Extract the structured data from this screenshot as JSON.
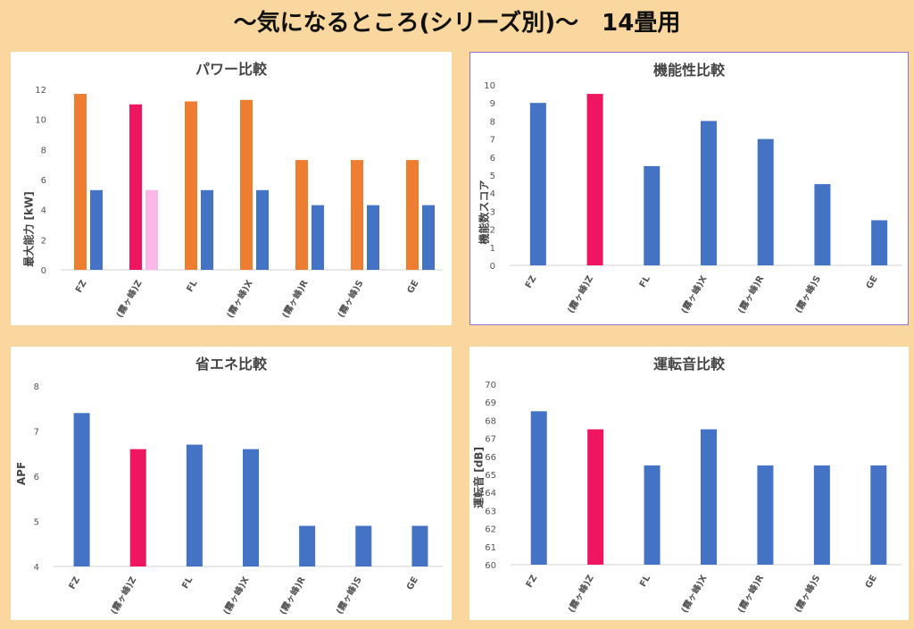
{
  "page_title": "〜気になるところ(シリーズ別)〜　14畳用",
  "colors": {
    "orange": "#ed7d31",
    "blue": "#4472c4",
    "pink": "#ef1561",
    "lightpink": "#fbb7e8",
    "background": "#f9d79e"
  },
  "chart_data": [
    {
      "type": "bar",
      "title": "パワー比較",
      "ylabel": "最大能力 [kW]",
      "xlabel": "",
      "categories": [
        "FZ",
        "(霧ヶ峰)Z",
        "FL",
        "(霧ヶ峰)X",
        "(霧ヶ峰)R",
        "(霧ヶ峰)S",
        "GE"
      ],
      "ylim": [
        0,
        12
      ],
      "yticks": [
        0,
        2,
        4,
        6,
        8,
        10,
        12
      ],
      "series": [
        {
          "values": [
            11.7,
            11.0,
            11.2,
            11.3,
            7.3,
            7.3,
            7.3
          ],
          "colors": [
            "#ed7d31",
            "#ef1561",
            "#ed7d31",
            "#ed7d31",
            "#ed7d31",
            "#ed7d31",
            "#ed7d31"
          ]
        },
        {
          "values": [
            5.3,
            5.3,
            5.3,
            5.3,
            4.3,
            4.3,
            4.3
          ],
          "colors": [
            "#4472c4",
            "#fbb7e8",
            "#4472c4",
            "#4472c4",
            "#4472c4",
            "#4472c4",
            "#4472c4"
          ]
        }
      ]
    },
    {
      "type": "bar",
      "title": "機能性比較",
      "ylabel": "機能数スコア",
      "xlabel": "",
      "categories": [
        "FZ",
        "(霧ヶ峰)Z",
        "FL",
        "(霧ヶ峰)X",
        "(霧ヶ峰)R",
        "(霧ヶ峰)S",
        "GE"
      ],
      "ylim": [
        0,
        10
      ],
      "yticks": [
        0,
        1,
        2,
        3,
        4,
        5,
        6,
        7,
        8,
        9,
        10
      ],
      "series": [
        {
          "values": [
            9,
            9.5,
            5.5,
            8,
            7,
            4.5,
            2.5
          ],
          "colors": [
            "#4472c4",
            "#ef1561",
            "#4472c4",
            "#4472c4",
            "#4472c4",
            "#4472c4",
            "#4472c4"
          ]
        }
      ]
    },
    {
      "type": "bar",
      "title": "省エネ比較",
      "ylabel": "APF",
      "xlabel": "",
      "categories": [
        "FZ",
        "(霧ヶ峰)Z",
        "FL",
        "(霧ヶ峰)X",
        "(霧ヶ峰)R",
        "(霧ヶ峰)S",
        "GE"
      ],
      "ylim": [
        4,
        8
      ],
      "yticks": [
        4,
        5,
        6,
        7,
        8
      ],
      "series": [
        {
          "values": [
            7.4,
            6.6,
            6.7,
            6.6,
            4.9,
            4.9,
            4.9
          ],
          "colors": [
            "#4472c4",
            "#ef1561",
            "#4472c4",
            "#4472c4",
            "#4472c4",
            "#4472c4",
            "#4472c4"
          ]
        }
      ]
    },
    {
      "type": "bar",
      "title": "運転音比較",
      "ylabel": "運転音 [dB]",
      "xlabel": "",
      "categories": [
        "FZ",
        "(霧ヶ峰)Z",
        "FL",
        "(霧ヶ峰)X",
        "(霧ヶ峰)R",
        "(霧ヶ峰)S",
        "GE"
      ],
      "ylim": [
        60,
        70
      ],
      "yticks": [
        60,
        61,
        62,
        63,
        64,
        65,
        66,
        67,
        68,
        69,
        70
      ],
      "series": [
        {
          "values": [
            68.5,
            67.5,
            65.5,
            67.5,
            65.5,
            65.5,
            65.5
          ],
          "colors": [
            "#4472c4",
            "#ef1561",
            "#4472c4",
            "#4472c4",
            "#4472c4",
            "#4472c4",
            "#4472c4"
          ]
        }
      ]
    }
  ]
}
